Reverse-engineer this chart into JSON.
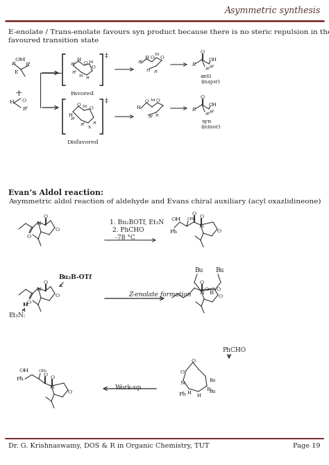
{
  "title": "Asymmetric synthesis",
  "title_color": "#5a3030",
  "title_line_color": "#7a3030",
  "bg_color": "#ffffff",
  "text_color": "#222222",
  "header_text_line1": "E-enolate / Trans-enolate favours syn product because there is no steric repulsion in the",
  "header_text_line2": "favoured transition state",
  "section_title": "Evan’s Aldol reaction:",
  "section_body": "Asymmetric aldol reaction of aldehyde and Evans chiral auxiliary (acyl oxazlidineone)",
  "footer_left": "Dr. G. Krishnaswamy, DOS & R in Organic Chemistry, TUT",
  "footer_right": "Page 19",
  "footer_line_color": "#7a3030"
}
